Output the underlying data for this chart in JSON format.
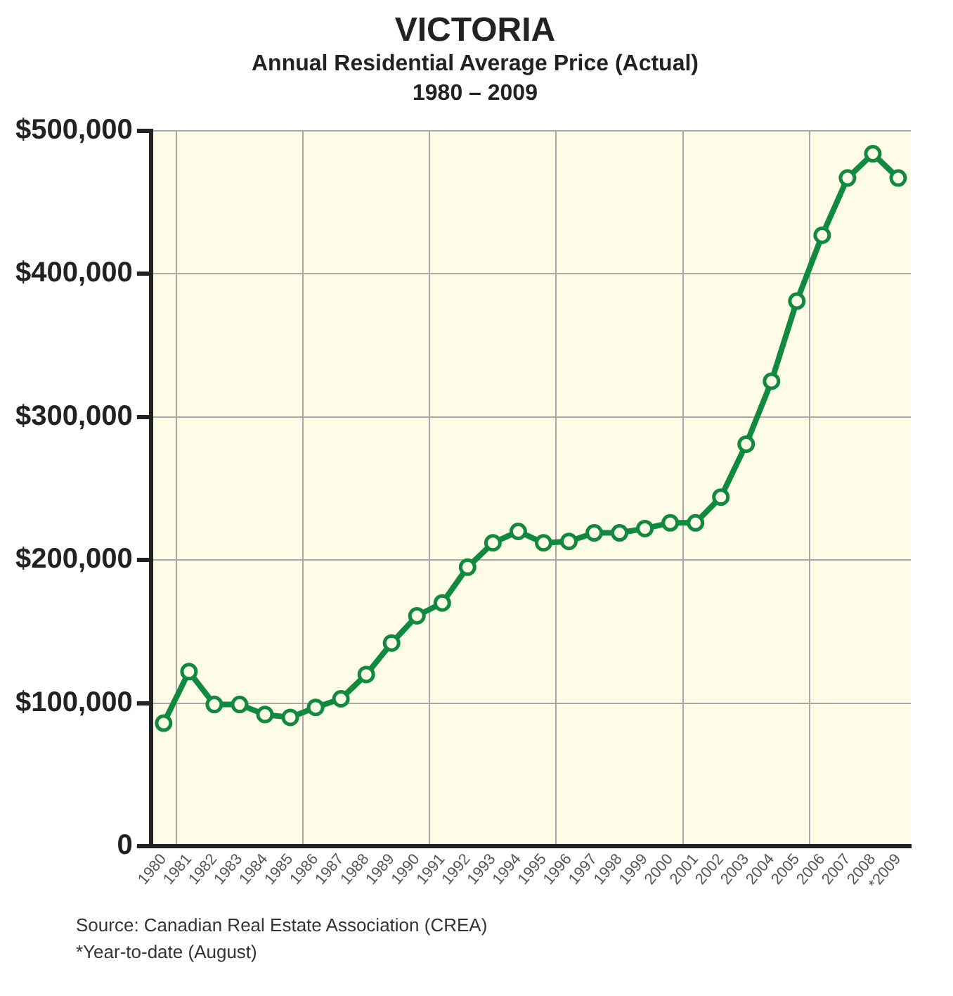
{
  "chart_data": {
    "type": "line",
    "title": "VICTORIA",
    "subtitle": "Annual Residential Average Price (Actual)\n1980 – 2009",
    "categories": [
      "1980",
      "1981",
      "1982",
      "1983",
      "1984",
      "1985",
      "1986",
      "1987",
      "1988",
      "1989",
      "1990",
      "1991",
      "1992",
      "1993",
      "1994",
      "1995",
      "1996",
      "1997",
      "1998",
      "1999",
      "2000",
      "2001",
      "2002",
      "2003",
      "2004",
      "2005",
      "2006",
      "2007",
      "2008",
      "*2009"
    ],
    "series": [
      {
        "color": "#0f8a3f",
        "values": [
          86000,
          122000,
          99000,
          99000,
          92000,
          90000,
          97000,
          103000,
          120000,
          142000,
          161000,
          170000,
          195000,
          212000,
          220000,
          212000,
          213000,
          219000,
          219000,
          222000,
          226000,
          226000,
          244000,
          281000,
          325000,
          381000,
          427000,
          467000,
          484000,
          467000
        ]
      }
    ],
    "ylim": [
      0,
      500000
    ],
    "yticks": [
      {
        "value": 0,
        "label": "0"
      },
      {
        "value": 100000,
        "label": "$100,000"
      },
      {
        "value": 200000,
        "label": "$200,000"
      },
      {
        "value": 300000,
        "label": "$300,000"
      },
      {
        "value": 400000,
        "label": "$400,000"
      },
      {
        "value": 500000,
        "label": "$500,000"
      }
    ],
    "grid": true,
    "marker": "circle",
    "line_style": "solid",
    "legend": false,
    "annotations": [
      "Source: Canadian Real Estate Association (CREA)",
      "*Year-to-date (August)"
    ]
  }
}
